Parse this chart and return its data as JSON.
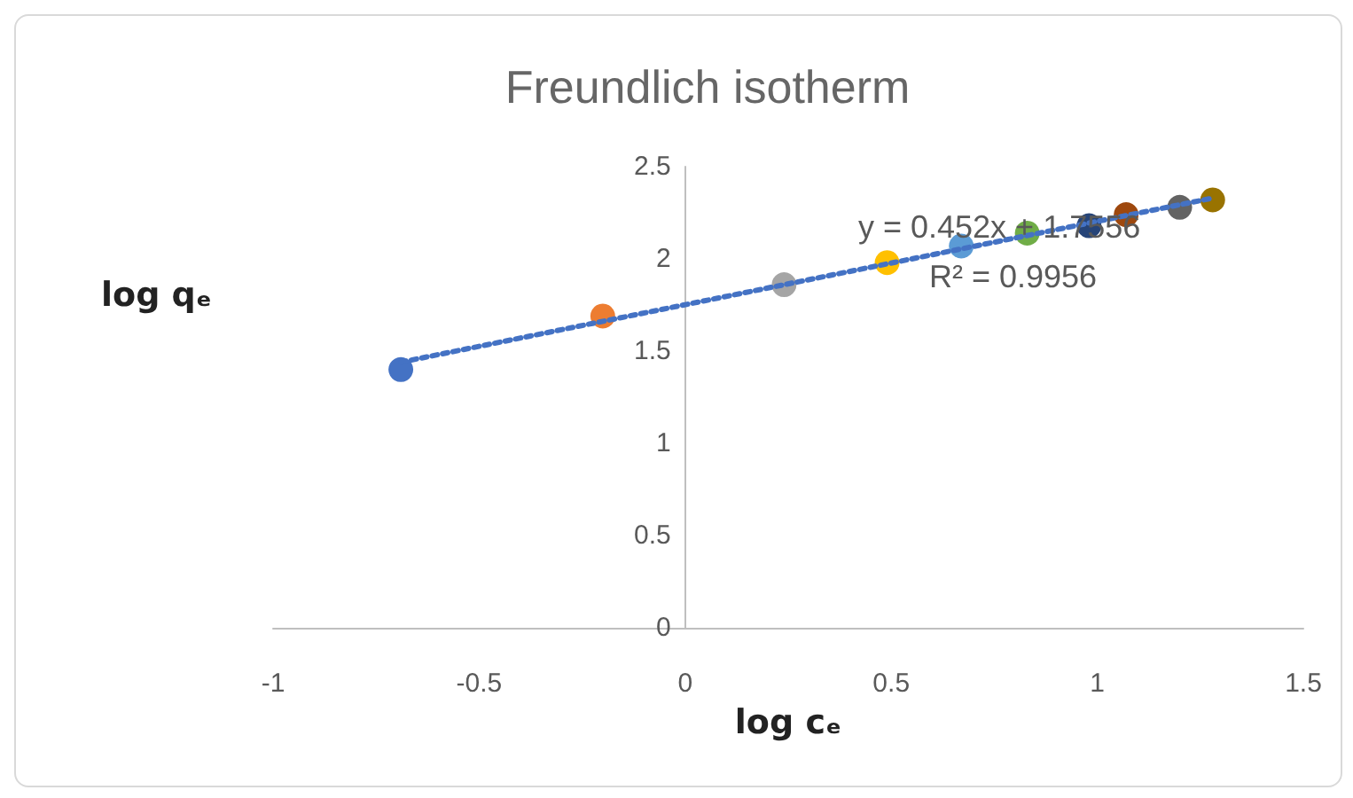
{
  "chart_data": {
    "type": "scatter",
    "title": "Freundlich isotherm",
    "xlabel": "log cₑ",
    "ylabel": "log qₑ",
    "x": [
      -0.69,
      -0.2,
      0.24,
      0.49,
      0.67,
      0.83,
      0.98,
      1.07,
      1.2,
      1.28
    ],
    "series": [
      {
        "values": [
          1.4,
          1.69,
          1.86,
          1.98,
          2.07,
          2.14,
          2.18,
          2.24,
          2.28,
          2.32
        ],
        "colors": [
          "#4472c4",
          "#ed7d31",
          "#a5a5a5",
          "#ffc000",
          "#5b9bd5",
          "#70ad47",
          "#264478",
          "#9e480e",
          "#636363",
          "#997300"
        ]
      },
      {
        "type": "line",
        "x": [
          -0.69,
          1.28
        ],
        "values": [
          1.44,
          2.33
        ],
        "color": "#4472c4",
        "line_style": "dotted",
        "marker": "none"
      }
    ],
    "xlim": [
      -1,
      1.5
    ],
    "xticks": [
      -1,
      -0.5,
      0,
      0.5,
      1,
      1.5
    ],
    "ylim": [
      0,
      2.5
    ],
    "yticks": [
      0,
      0.5,
      1,
      1.5,
      2,
      2.5
    ],
    "grid": false,
    "marker": "circle",
    "annotations": [
      "y = 0.452x + 1.7556",
      "R² = 0.9956"
    ]
  }
}
